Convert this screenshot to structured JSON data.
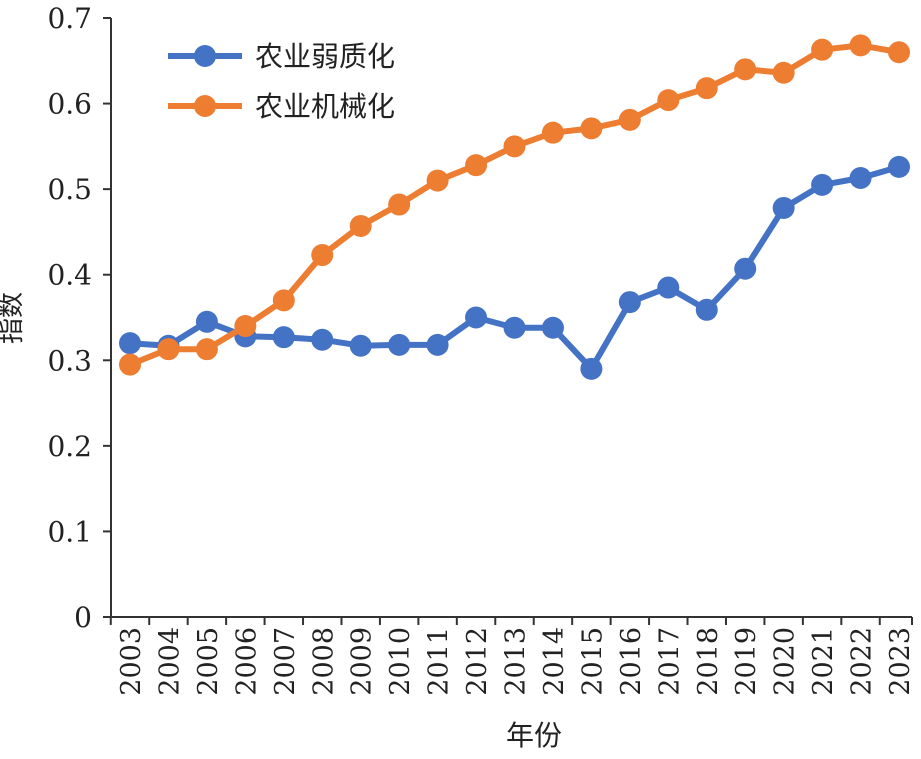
{
  "chart_data": {
    "type": "line",
    "title": "",
    "xlabel": "年份",
    "ylabel": "指数",
    "ylim": [
      0,
      0.7
    ],
    "yticks": [
      0,
      0.1,
      0.2,
      0.3,
      0.4,
      0.5,
      0.6,
      0.7
    ],
    "ytick_labels": [
      "0",
      "0.1",
      "0.2",
      "0.3",
      "0.4",
      "0.5",
      "0.6",
      "0.7"
    ],
    "categories": [
      "2003",
      "2004",
      "2005",
      "2006",
      "2007",
      "2008",
      "2009",
      "2010",
      "2011",
      "2012",
      "2013",
      "2014",
      "2015",
      "2016",
      "2017",
      "2018",
      "2019",
      "2020",
      "2021",
      "2022",
      "2023"
    ],
    "grid": false,
    "legend_position": "top-left",
    "series": [
      {
        "name": "农业弱质化",
        "color": "#4472c4",
        "values": [
          0.32,
          0.317,
          0.345,
          0.328,
          0.327,
          0.324,
          0.317,
          0.318,
          0.318,
          0.35,
          0.338,
          0.338,
          0.29,
          0.368,
          0.385,
          0.359,
          0.407,
          0.478,
          0.505,
          0.513,
          0.526
        ]
      },
      {
        "name": "农业机械化",
        "color": "#ed7d31",
        "values": [
          0.295,
          0.313,
          0.313,
          0.34,
          0.37,
          0.423,
          0.457,
          0.482,
          0.51,
          0.528,
          0.55,
          0.566,
          0.571,
          0.581,
          0.604,
          0.618,
          0.64,
          0.636,
          0.663,
          0.668,
          0.66
        ]
      }
    ]
  }
}
